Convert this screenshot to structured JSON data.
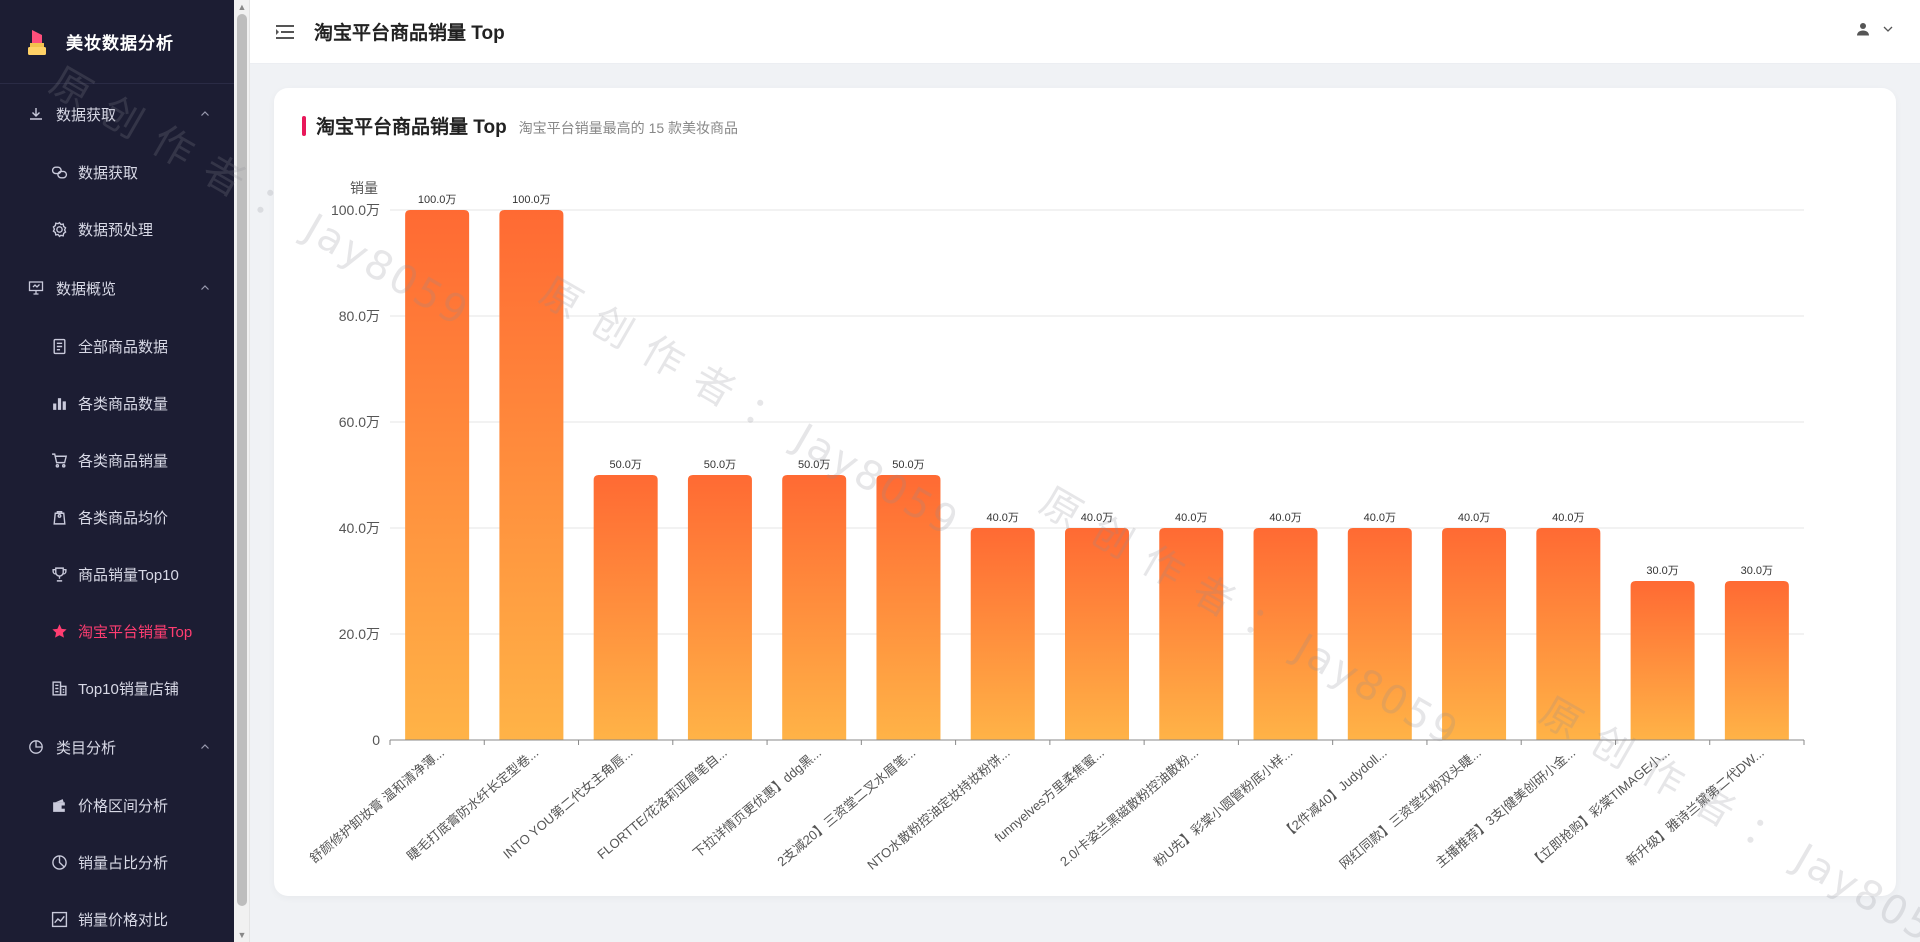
{
  "brand": {
    "title": "美妆数据分析"
  },
  "sidebar": {
    "groups": [
      {
        "label": "数据获取",
        "icon": "download-icon",
        "items": [
          {
            "label": "数据获取",
            "icon": "link-icon"
          },
          {
            "label": "数据预处理",
            "icon": "gear-icon"
          }
        ]
      },
      {
        "label": "数据概览",
        "icon": "presentation-icon",
        "items": [
          {
            "label": "全部商品数据",
            "icon": "document-icon"
          },
          {
            "label": "各类商品数量",
            "icon": "bar-chart-icon"
          },
          {
            "label": "各类商品销量",
            "icon": "cart-icon"
          },
          {
            "label": "各类商品均价",
            "icon": "tag-icon"
          },
          {
            "label": "商品销量Top10",
            "icon": "trophy-icon"
          },
          {
            "label": "淘宝平台销量Top",
            "icon": "star-icon",
            "active": true
          },
          {
            "label": "Top10销量店铺",
            "icon": "building-icon"
          }
        ]
      },
      {
        "label": "类目分析",
        "icon": "pie-icon",
        "items": [
          {
            "label": "价格区间分析",
            "icon": "wallet-icon"
          },
          {
            "label": "销量占比分析",
            "icon": "pie-chart-icon"
          },
          {
            "label": "销量价格对比",
            "icon": "line-chart-icon"
          }
        ]
      }
    ]
  },
  "header": {
    "title": "淘宝平台商品销量 Top"
  },
  "card": {
    "title": "淘宝平台商品销量 Top",
    "subtitle": "淘宝平台销量最高的 15 款美妆商品"
  },
  "watermark": "原 创 作 者 ： Jay8059",
  "colors": {
    "sidebar_bg": "#1c1d33",
    "active": "#ff3d71",
    "accent": "#e8185a",
    "bar_top": "#ff6a33",
    "bar_bottom": "#ffb347"
  },
  "chart_data": {
    "type": "bar",
    "ylabel": "销量",
    "ylim": [
      0,
      1000000
    ],
    "y_ticks": [
      "0",
      "20.0万",
      "40.0万",
      "60.0万",
      "80.0万",
      "100.0万"
    ],
    "categories": [
      "舒颜修护卸妆膏 温和清净薄...",
      "睫毛打底膏防水纤长定型卷...",
      "INTO YOU第二代女主角唇...",
      "FLORTTE/花洛莉亚眉笔自...",
      "下拉详情页更优惠】ddg黑...",
      "2支减20】三资堂二叉水眉笔...",
      "NTO水散粉控油定妆持妆粉饼...",
      "funnyelves方里柔焦蜜...",
      "2.0/卡姿兰黑磁散粉控油散粉...",
      "粉U先】彩棠小圆管粉底小样...",
      "【2件减40】Judydoll...",
      "网红同款】三资堂红粉双头睫...",
      "主播推荐】3支|健美创研小金...",
      "【立即抢购】彩棠TIMAGE小...",
      "新升级】雅诗兰黛第二代DW..."
    ],
    "values": [
      1000000,
      1000000,
      500000,
      500000,
      500000,
      500000,
      400000,
      400000,
      400000,
      400000,
      400000,
      400000,
      400000,
      300000,
      300000
    ],
    "data_labels": [
      "100.0万",
      "100.0万",
      "50.0万",
      "50.0万",
      "50.0万",
      "50.0万",
      "40.0万",
      "40.0万",
      "40.0万",
      "40.0万",
      "40.0万",
      "40.0万",
      "40.0万",
      "30.0万",
      "30.0万"
    ],
    "grid": true,
    "legend": "none"
  }
}
